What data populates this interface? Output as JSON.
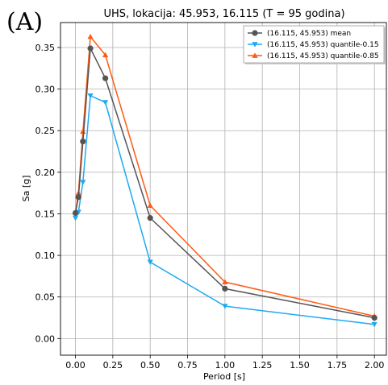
{
  "panel_label": "(A)",
  "chart_data": {
    "type": "line",
    "title": "UHS, lokacija: 45.953, 16.115 (T = 95 godina)",
    "xlabel": "Period [s]",
    "ylabel": "Sa [g]",
    "xlim": [
      -0.1,
      2.08
    ],
    "ylim": [
      -0.02,
      0.38
    ],
    "xticks": [
      "0.00",
      "0.25",
      "0.50",
      "0.75",
      "1.00",
      "1.25",
      "1.50",
      "1.75",
      "2.00"
    ],
    "yticks": [
      "0.00",
      "0.05",
      "0.10",
      "0.15",
      "0.20",
      "0.25",
      "0.30",
      "0.35"
    ],
    "grid": true,
    "legend_position": "top-right",
    "series": [
      {
        "name": "(16.115, 45.953) mean",
        "color": "#555555",
        "marker": "circle",
        "x": [
          0.0,
          0.02,
          0.05,
          0.1,
          0.2,
          0.5,
          1.0,
          2.0
        ],
        "y": [
          0.151,
          0.17,
          0.237,
          0.349,
          0.313,
          0.145,
          0.06,
          0.025
        ]
      },
      {
        "name": "(16.115, 45.953) quantile-0.15",
        "color": "#1eaaf1",
        "marker": "triangle-down",
        "x": [
          0.0,
          0.02,
          0.05,
          0.1,
          0.2,
          0.5,
          1.0,
          2.0
        ],
        "y": [
          0.145,
          0.152,
          0.188,
          0.292,
          0.284,
          0.092,
          0.039,
          0.017
        ]
      },
      {
        "name": "(16.115, 45.953) quantile-0.85",
        "color": "#ff5a14",
        "marker": "triangle-up",
        "x": [
          0.0,
          0.02,
          0.05,
          0.1,
          0.2,
          0.5,
          1.0,
          2.0
        ],
        "y": [
          0.152,
          0.175,
          0.249,
          0.363,
          0.341,
          0.16,
          0.068,
          0.027
        ]
      }
    ]
  }
}
